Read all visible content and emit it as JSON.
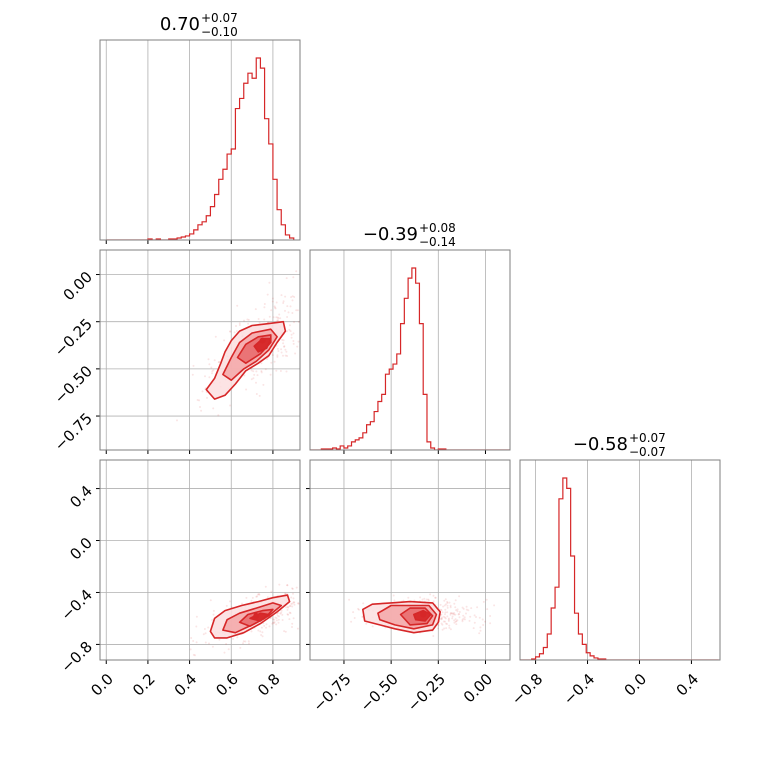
{
  "figure": {
    "type": "corner-plot",
    "color": "#d62728",
    "panels": [
      {
        "id": "hist-0",
        "title": {
          "median": "0.70",
          "plus": "+0.07",
          "minus": "−0.10"
        }
      },
      {
        "id": "hist-1",
        "title": {
          "median": "−0.39",
          "plus": "+0.08",
          "minus": "−0.14"
        }
      },
      {
        "id": "hist-2",
        "title": {
          "median": "−0.58",
          "plus": "+0.07",
          "minus": "−0.07"
        }
      }
    ],
    "axes": {
      "p0": {
        "range": [
          -0.03,
          0.93
        ],
        "ticks": [
          "0.0",
          "0.2",
          "0.4",
          "0.6",
          "0.8"
        ]
      },
      "p1": {
        "range": [
          -0.93,
          0.13
        ],
        "ticks": [
          "−0.75",
          "−0.50",
          "−0.25",
          "0.00"
        ]
      },
      "p2": {
        "range": [
          -0.92,
          0.62
        ],
        "ticks": [
          "−0.8",
          "−0.4",
          "0.0",
          "0.4"
        ]
      }
    }
  },
  "chart_data": [
    {
      "type": "histogram",
      "panel": "hist-0",
      "variable": "p0",
      "bin_edges": [
        0.0,
        0.02,
        0.04,
        0.06,
        0.08,
        0.1,
        0.12,
        0.14,
        0.16,
        0.18,
        0.2,
        0.22,
        0.24,
        0.26,
        0.28,
        0.3,
        0.32,
        0.34,
        0.36,
        0.38,
        0.4,
        0.42,
        0.44,
        0.46,
        0.48,
        0.5,
        0.52,
        0.54,
        0.56,
        0.58,
        0.6,
        0.62,
        0.64,
        0.66,
        0.68,
        0.7,
        0.72,
        0.74,
        0.76,
        0.78,
        0.8,
        0.82,
        0.84,
        0.86,
        0.88,
        0.9
      ],
      "counts": [
        0,
        0,
        0,
        0,
        0,
        0,
        0,
        0,
        0,
        0,
        1,
        0,
        1,
        0,
        0,
        1,
        1,
        2,
        3,
        4,
        6,
        10,
        15,
        18,
        24,
        33,
        45,
        60,
        70,
        85,
        90,
        130,
        140,
        155,
        165,
        160,
        180,
        170,
        120,
        95,
        60,
        30,
        15,
        5,
        2
      ]
    },
    {
      "type": "histogram",
      "panel": "hist-1",
      "variable": "p1",
      "bin_edges": [
        -0.93,
        -0.91,
        -0.89,
        -0.87,
        -0.85,
        -0.83,
        -0.81,
        -0.79,
        -0.77,
        -0.75,
        -0.73,
        -0.71,
        -0.69,
        -0.67,
        -0.65,
        -0.63,
        -0.61,
        -0.59,
        -0.57,
        -0.55,
        -0.53,
        -0.51,
        -0.49,
        -0.47,
        -0.45,
        -0.43,
        -0.41,
        -0.39,
        -0.37,
        -0.35,
        -0.33,
        -0.31,
        -0.29,
        -0.27,
        -0.25,
        -0.23,
        -0.21,
        -0.19,
        -0.17,
        -0.15,
        -0.13,
        -0.11,
        -0.09,
        -0.07,
        -0.05,
        -0.03,
        -0.01,
        0.01,
        0.03,
        0.05,
        0.07,
        0.09,
        0.11,
        0.13
      ],
      "counts": [
        0,
        0,
        0,
        1,
        1,
        1,
        2,
        1,
        4,
        2,
        4,
        8,
        10,
        12,
        17,
        25,
        28,
        38,
        48,
        55,
        75,
        80,
        85,
        95,
        125,
        150,
        170,
        180,
        165,
        125,
        55,
        8,
        2,
        0,
        1,
        1,
        0,
        0,
        0,
        0,
        0,
        0,
        0,
        0,
        0,
        0,
        0,
        0,
        0,
        0,
        0,
        0,
        0
      ]
    },
    {
      "type": "histogram",
      "panel": "hist-2",
      "variable": "p2",
      "bin_edges": [
        -0.92,
        -0.89,
        -0.86,
        -0.83,
        -0.8,
        -0.77,
        -0.74,
        -0.71,
        -0.68,
        -0.65,
        -0.62,
        -0.59,
        -0.56,
        -0.53,
        -0.5,
        -0.47,
        -0.44,
        -0.41,
        -0.38,
        -0.35,
        -0.32,
        -0.29,
        -0.26,
        -0.23,
        -0.2,
        -0.17,
        -0.14,
        -0.11,
        -0.08,
        -0.05,
        -0.02,
        0.01,
        0.04,
        0.07,
        0.1,
        0.13,
        0.16,
        0.19,
        0.22,
        0.25,
        0.28,
        0.31,
        0.34,
        0.37,
        0.4,
        0.43,
        0.46,
        0.49,
        0.52,
        0.55,
        0.58,
        0.61
      ],
      "counts": [
        0,
        0,
        0,
        1,
        3,
        6,
        12,
        25,
        50,
        70,
        155,
        175,
        165,
        100,
        45,
        25,
        15,
        7,
        4,
        2,
        1,
        1,
        0,
        0,
        0,
        0,
        0,
        0,
        0,
        0,
        0,
        0,
        0,
        0,
        0,
        0,
        0,
        0,
        0,
        0,
        0,
        0,
        0,
        0,
        0,
        0,
        0,
        0,
        0,
        0,
        0
      ]
    },
    {
      "type": "contour",
      "panel": "joint-0-1",
      "x": "p0",
      "y": "p1",
      "peak": [
        0.75,
        -0.35
      ],
      "contour_levels": [
        {
          "level": 1,
          "points": [
            [
              0.48,
              -0.61
            ],
            [
              0.52,
              -0.55
            ],
            [
              0.55,
              -0.47
            ],
            [
              0.57,
              -0.41
            ],
            [
              0.6,
              -0.35
            ],
            [
              0.64,
              -0.3
            ],
            [
              0.7,
              -0.27
            ],
            [
              0.78,
              -0.26
            ],
            [
              0.85,
              -0.25
            ],
            [
              0.86,
              -0.3
            ],
            [
              0.82,
              -0.36
            ],
            [
              0.78,
              -0.43
            ],
            [
              0.73,
              -0.47
            ],
            [
              0.67,
              -0.51
            ],
            [
              0.62,
              -0.58
            ],
            [
              0.57,
              -0.64
            ],
            [
              0.52,
              -0.66
            ]
          ]
        },
        {
          "level": 2,
          "points": [
            [
              0.56,
              -0.53
            ],
            [
              0.6,
              -0.44
            ],
            [
              0.64,
              -0.36
            ],
            [
              0.7,
              -0.31
            ],
            [
              0.79,
              -0.29
            ],
            [
              0.82,
              -0.33
            ],
            [
              0.78,
              -0.4
            ],
            [
              0.72,
              -0.46
            ],
            [
              0.66,
              -0.5
            ],
            [
              0.6,
              -0.56
            ]
          ]
        },
        {
          "level": 3,
          "points": [
            [
              0.63,
              -0.44
            ],
            [
              0.67,
              -0.37
            ],
            [
              0.73,
              -0.33
            ],
            [
              0.79,
              -0.32
            ],
            [
              0.79,
              -0.36
            ],
            [
              0.74,
              -0.42
            ],
            [
              0.67,
              -0.47
            ]
          ]
        },
        {
          "level": 4,
          "points": [
            [
              0.71,
              -0.38
            ],
            [
              0.75,
              -0.34
            ],
            [
              0.79,
              -0.34
            ],
            [
              0.77,
              -0.39
            ],
            [
              0.73,
              -0.41
            ]
          ]
        }
      ]
    },
    {
      "type": "contour",
      "panel": "joint-0-2",
      "x": "p0",
      "y": "p2",
      "peak": [
        0.72,
        -0.58
      ],
      "contour_levels": [
        {
          "level": 1,
          "points": [
            [
              0.5,
              -0.7
            ],
            [
              0.52,
              -0.6
            ],
            [
              0.57,
              -0.54
            ],
            [
              0.65,
              -0.5
            ],
            [
              0.73,
              -0.47
            ],
            [
              0.8,
              -0.44
            ],
            [
              0.87,
              -0.42
            ],
            [
              0.88,
              -0.47
            ],
            [
              0.82,
              -0.55
            ],
            [
              0.74,
              -0.64
            ],
            [
              0.66,
              -0.71
            ],
            [
              0.58,
              -0.75
            ],
            [
              0.52,
              -0.75
            ]
          ]
        },
        {
          "level": 2,
          "points": [
            [
              0.56,
              -0.69
            ],
            [
              0.58,
              -0.61
            ],
            [
              0.64,
              -0.56
            ],
            [
              0.72,
              -0.52
            ],
            [
              0.8,
              -0.48
            ],
            [
              0.84,
              -0.5
            ],
            [
              0.78,
              -0.58
            ],
            [
              0.7,
              -0.65
            ],
            [
              0.62,
              -0.71
            ]
          ]
        },
        {
          "level": 3,
          "points": [
            [
              0.64,
              -0.63
            ],
            [
              0.68,
              -0.57
            ],
            [
              0.75,
              -0.54
            ],
            [
              0.8,
              -0.53
            ],
            [
              0.76,
              -0.6
            ],
            [
              0.69,
              -0.66
            ]
          ]
        },
        {
          "level": 4,
          "points": [
            [
              0.69,
              -0.6
            ],
            [
              0.74,
              -0.56
            ],
            [
              0.78,
              -0.57
            ],
            [
              0.74,
              -0.62
            ]
          ]
        }
      ]
    },
    {
      "type": "contour",
      "panel": "joint-1-2",
      "x": "p1",
      "y": "p2",
      "peak": [
        -0.33,
        -0.57
      ],
      "contour_levels": [
        {
          "level": 1,
          "points": [
            [
              -0.65,
              -0.53
            ],
            [
              -0.6,
              -0.49
            ],
            [
              -0.5,
              -0.48
            ],
            [
              -0.4,
              -0.47
            ],
            [
              -0.28,
              -0.48
            ],
            [
              -0.24,
              -0.55
            ],
            [
              -0.25,
              -0.63
            ],
            [
              -0.28,
              -0.69
            ],
            [
              -0.38,
              -0.71
            ],
            [
              -0.48,
              -0.68
            ],
            [
              -0.56,
              -0.65
            ],
            [
              -0.64,
              -0.62
            ]
          ]
        },
        {
          "level": 2,
          "points": [
            [
              -0.57,
              -0.56
            ],
            [
              -0.5,
              -0.5
            ],
            [
              -0.4,
              -0.5
            ],
            [
              -0.3,
              -0.5
            ],
            [
              -0.26,
              -0.57
            ],
            [
              -0.28,
              -0.65
            ],
            [
              -0.38,
              -0.68
            ],
            [
              -0.48,
              -0.65
            ],
            [
              -0.56,
              -0.61
            ]
          ]
        },
        {
          "level": 3,
          "points": [
            [
              -0.45,
              -0.57
            ],
            [
              -0.4,
              -0.52
            ],
            [
              -0.32,
              -0.52
            ],
            [
              -0.28,
              -0.58
            ],
            [
              -0.31,
              -0.64
            ],
            [
              -0.4,
              -0.65
            ]
          ]
        },
        {
          "level": 4,
          "points": [
            [
              -0.38,
              -0.57
            ],
            [
              -0.33,
              -0.54
            ],
            [
              -0.29,
              -0.57
            ],
            [
              -0.32,
              -0.62
            ],
            [
              -0.37,
              -0.61
            ]
          ]
        }
      ]
    }
  ]
}
